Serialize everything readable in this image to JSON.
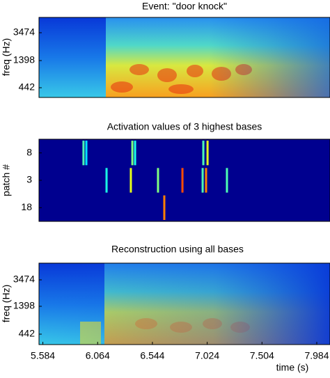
{
  "chart_data": [
    {
      "type": "spectrogram",
      "title": "Event: \"door knock\"",
      "ylabel": "freq (Hz)",
      "yticklabels": [
        "3474",
        "1398",
        "442"
      ]
    },
    {
      "type": "activation",
      "title": "Activation values of 3 highest bases",
      "ylabel": "patch #",
      "xlim": [
        5.55,
        8.1
      ],
      "vlim": [
        0,
        1
      ],
      "series": [
        {
          "name": "8",
          "x": [
            5.94,
            5.965,
            6.368,
            6.392,
            6.99,
            7.027
          ],
          "values": [
            0.45,
            0.35,
            0.5,
            0.4,
            0.45,
            0.6
          ]
        },
        {
          "name": "3",
          "x": [
            6.142,
            6.355,
            6.593,
            6.807,
            6.984,
            7.014,
            7.197
          ],
          "values": [
            0.4,
            0.6,
            0.5,
            0.8,
            0.45,
            0.75,
            0.45
          ]
        },
        {
          "name": "18",
          "x": [
            6.648
          ],
          "values": [
            0.75
          ]
        }
      ]
    },
    {
      "type": "spectrogram",
      "title": "Reconstruction using all bases",
      "ylabel": "freq (Hz)",
      "yticklabels": [
        "3474",
        "1398",
        "442"
      ],
      "xlabel": "time (s)",
      "xlim": [
        5.55,
        8.1
      ],
      "xticks": [
        5.584,
        6.064,
        6.544,
        7.024,
        7.504,
        7.984
      ]
    }
  ]
}
